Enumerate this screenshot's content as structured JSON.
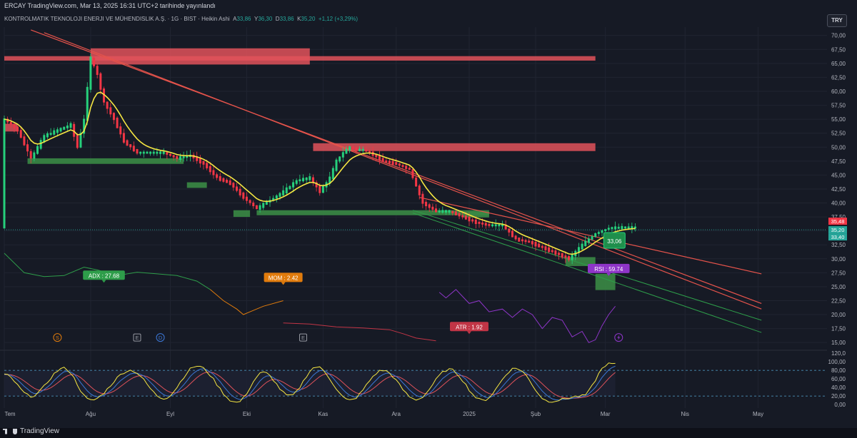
{
  "header": {
    "publish_line": "ERCAY TradingView.com, Mar 13, 2025 16:31 UTC+2 tarihinde yayınlandı",
    "symbol_name": "KONTROLMATIK TEKNOLOJI ENERJI VE MÜHENDISLIK A.Ş.",
    "interval": "1G",
    "exchange": "BIST",
    "chart_style": "Heikin Ashi",
    "ohlc": {
      "A": "33,86",
      "Y": "36,30",
      "D": "33,86",
      "K": "35,20",
      "change": "+1,12 (+3,29%)"
    },
    "currency": "TRY",
    "brand": "TradingView"
  },
  "colors": {
    "background": "#161a25",
    "up_candle": "#26d07c",
    "down_candle": "#f23645",
    "ema": "#f5e642",
    "trendline": "#e5534b",
    "channel": "#2e9d4a",
    "resistance_zone": "#e0525a",
    "support_zone": "#3a8a45",
    "adx": "#9598a1",
    "mom": "#e07b0c",
    "atr": "#c13546",
    "rsi": "#8e35c8",
    "stoch_k": "#f5e642",
    "stoch_d": "#3c78d8",
    "stoch_s": "#e0525a"
  },
  "chart_data": {
    "type": "candlestick",
    "price_axis": {
      "ticks": [
        "70,00",
        "67,50",
        "65,00",
        "62,50",
        "60,00",
        "57,50",
        "55,00",
        "52,50",
        "50,00",
        "47,50",
        "45,00",
        "42,50",
        "40,00",
        "37,50",
        "35,00",
        "32,50",
        "30,00",
        "27,50",
        "25,00",
        "22,50",
        "20,00",
        "17,50",
        "15,00"
      ],
      "range": [
        14.0,
        71.5
      ],
      "current_price_labels": [
        {
          "text": "35,48",
          "color": "#f23645"
        },
        {
          "text": "35,20",
          "color": "#26a69a"
        },
        {
          "text": "33,40",
          "color": "#26a69a"
        }
      ],
      "ema_tag": "33,06"
    },
    "oscillator_axis": {
      "ticks": [
        "120,0",
        "100,00",
        "80,00",
        "60,00",
        "40,00",
        "20,00",
        "0,00"
      ],
      "range": [
        -8,
        122
      ],
      "bands": [
        80,
        20
      ]
    },
    "time_axis": {
      "labels": [
        "Tem",
        "Ağu",
        "Eyl",
        "Eki",
        "Kas",
        "Ara",
        "2025",
        "Şub",
        "Mar",
        "Nis",
        "May"
      ],
      "label_day_index": [
        0,
        26,
        50,
        73,
        96,
        118,
        140,
        160,
        181,
        205,
        227
      ]
    },
    "candle_day_range": [
      0,
      190
    ],
    "price_path_days": [
      0,
      4,
      8,
      12,
      16,
      20,
      22,
      24,
      26,
      28,
      30,
      33,
      36,
      40,
      44,
      48,
      52,
      56,
      60,
      64,
      68,
      72,
      76,
      80,
      84,
      88,
      92,
      95,
      98,
      100,
      102,
      104,
      106,
      108,
      110,
      114,
      118,
      122,
      126,
      130,
      132,
      134,
      138,
      142,
      146,
      150,
      154,
      158,
      162,
      166,
      170,
      174,
      178,
      182,
      186,
      190
    ],
    "price_path_values": [
      55.0,
      53.0,
      48.0,
      52.0,
      53.0,
      54.0,
      50.0,
      55.0,
      66.0,
      63.0,
      58.0,
      55.0,
      51.0,
      49.0,
      49.0,
      49.0,
      48.0,
      48.5,
      47.0,
      44.5,
      43.5,
      41.0,
      39.0,
      40.5,
      42.0,
      44.0,
      44.5,
      42.0,
      44.5,
      47.5,
      49.0,
      50.0,
      49.5,
      49.5,
      49.0,
      47.5,
      47.0,
      46.0,
      40.0,
      38.5,
      38.5,
      38.5,
      37.5,
      36.5,
      36.0,
      36.0,
      33.5,
      33.0,
      32.0,
      31.0,
      30.0,
      32.5,
      34.5,
      35.5,
      35.6,
      35.6
    ],
    "resistance_zones": [
      {
        "day_start": 0,
        "day_end": 178,
        "low": 65.5,
        "high": 66.3
      },
      {
        "day_start": 26,
        "day_end": 92,
        "low": 64.8,
        "high": 67.7
      },
      {
        "day_start": 93,
        "day_end": 178,
        "low": 49.3,
        "high": 50.7
      },
      {
        "day_start": 0,
        "day_end": 4,
        "low": 52.8,
        "high": 54.2
      }
    ],
    "support_zones": [
      {
        "day_start": 7,
        "day_end": 54,
        "low": 47.0,
        "high": 48.0
      },
      {
        "day_start": 55,
        "day_end": 61,
        "low": 42.7,
        "high": 43.7
      },
      {
        "day_start": 69,
        "day_end": 74,
        "low": 37.5,
        "high": 38.7
      },
      {
        "day_start": 76,
        "day_end": 146,
        "low": 37.8,
        "high": 38.7
      },
      {
        "day_start": 138,
        "day_end": 146,
        "low": 37.4,
        "high": 38.4
      },
      {
        "day_start": 169,
        "day_end": 178,
        "low": 28.7,
        "high": 30.3
      },
      {
        "day_start": 178,
        "day_end": 184,
        "low": 24.4,
        "high": 27.3
      }
    ],
    "trendlines": [
      {
        "from": [
          8,
          71.0
        ],
        "to": [
          228,
          22.0
        ]
      },
      {
        "from": [
          12,
          70.5
        ],
        "to": [
          228,
          21.0
        ]
      },
      {
        "from": [
          125,
          41.0
        ],
        "to": [
          228,
          27.3
        ]
      }
    ],
    "channel_lines": [
      {
        "from": [
          123,
          38.7
        ],
        "to": [
          228,
          19.0
        ]
      },
      {
        "from": [
          123,
          38.2
        ],
        "to": [
          228,
          16.8
        ]
      }
    ],
    "indicators": [
      {
        "name": "ADX",
        "label": "ADX : 27.68",
        "color": "#2e9d4a",
        "days": [
          0,
          6,
          12,
          18,
          24,
          28,
          34,
          40,
          46,
          52,
          58,
          62
        ],
        "values": [
          31.0,
          27.5,
          26.8,
          27.0,
          28.5,
          28.0,
          27.0,
          27.6,
          27.3,
          27.0,
          26.0,
          24.5
        ]
      },
      {
        "name": "MOM",
        "label": "MOM : 2.42",
        "color": "#e07b0c",
        "days": [
          62,
          66,
          70,
          72,
          74,
          78,
          84
        ],
        "values": [
          24.5,
          22.5,
          21.0,
          20.0,
          20.5,
          21.5,
          22.5
        ]
      },
      {
        "name": "ATR",
        "label": "ATR : 1.92",
        "color": "#c13546",
        "days": [
          84,
          92,
          100,
          108,
          116,
          120,
          124,
          130
        ],
        "values": [
          18.5,
          18.3,
          17.8,
          17.6,
          17.3,
          16.6,
          15.8,
          15.3
        ]
      },
      {
        "name": "RSI",
        "label": "RSI : 59.74",
        "color": "#8e35c8",
        "days": [
          131,
          133,
          136,
          140,
          143,
          146,
          150,
          153,
          156,
          159,
          162,
          165,
          168,
          171,
          174,
          176,
          178,
          180,
          182,
          184
        ],
        "values": [
          24.0,
          23.0,
          24.5,
          22.0,
          22.5,
          20.5,
          21.0,
          19.5,
          21.0,
          20.0,
          17.5,
          19.5,
          19.0,
          16.0,
          17.0,
          15.0,
          15.5,
          18.0,
          20.0,
          21.5
        ]
      }
    ],
    "markers": [
      {
        "symbol": "S",
        "day": 16,
        "color": "#e07b0c"
      },
      {
        "symbol": "E",
        "day": 40,
        "color": "#9598a1"
      },
      {
        "symbol": "D",
        "day": 47,
        "color": "#3c78d8"
      },
      {
        "symbol": "E",
        "day": 90,
        "color": "#9598a1"
      }
    ],
    "stochastic": {
      "series": [
        {
          "name": "K",
          "color": "#f5e642"
        },
        {
          "name": "D",
          "color": "#3c78d8"
        },
        {
          "name": "S",
          "color": "#e0525a"
        }
      ],
      "cycle_days": [
        0,
        8,
        18,
        26,
        38,
        48,
        58,
        70,
        78,
        86,
        94,
        104,
        114,
        124,
        134,
        144,
        154,
        164,
        174,
        182
      ],
      "cycle_k_values": [
        70,
        20,
        85,
        10,
        80,
        15,
        90,
        5,
        75,
        20,
        88,
        10,
        80,
        12,
        82,
        10,
        85,
        8,
        20,
        95
      ]
    }
  }
}
